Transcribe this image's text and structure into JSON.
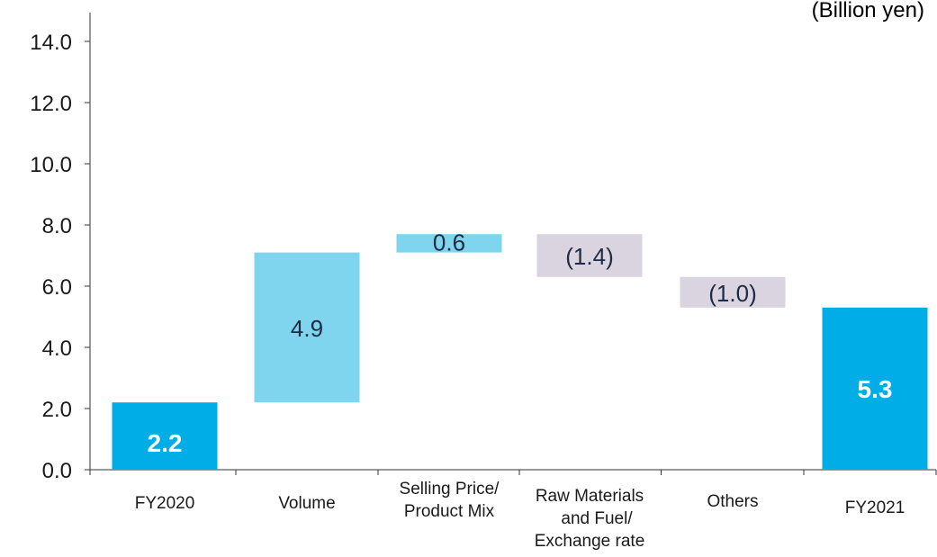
{
  "unit_label": "(Billion yen)",
  "colors": {
    "total": "#00ade6",
    "increase": "#7fd4ee",
    "decrease": "#d9d4e0",
    "axis": "#333333"
  },
  "chart_data": {
    "type": "bar",
    "subtype": "waterfall",
    "title": "",
    "xlabel": "",
    "ylabel": "",
    "unit": "(Billion yen)",
    "ylim": [
      0,
      14
    ],
    "yticks": [
      "0.0",
      "2.0",
      "4.0",
      "6.0",
      "8.0",
      "10.0",
      "12.0",
      "14.0"
    ],
    "grid": false,
    "legend": "none",
    "categories": [
      [
        "FY2020"
      ],
      [
        "Volume"
      ],
      [
        "Selling Price/",
        "Product Mix"
      ],
      [
        "Raw Materials",
        "and Fuel/",
        "Exchange rate"
      ],
      [
        "Others"
      ],
      [
        "FY2021"
      ]
    ],
    "bars": [
      {
        "kind": "total",
        "base": 0,
        "end": 2.2,
        "label": "2.2"
      },
      {
        "kind": "increase",
        "base": 2.2,
        "end": 7.1,
        "label": "4.9"
      },
      {
        "kind": "increase",
        "base": 7.1,
        "end": 7.7,
        "label": "0.6"
      },
      {
        "kind": "decrease",
        "base": 7.7,
        "end": 6.3,
        "label": "(1.4)"
      },
      {
        "kind": "decrease",
        "base": 6.3,
        "end": 5.3,
        "label": "(1.0)"
      },
      {
        "kind": "total",
        "base": 0,
        "end": 5.3,
        "label": "5.3"
      }
    ]
  }
}
